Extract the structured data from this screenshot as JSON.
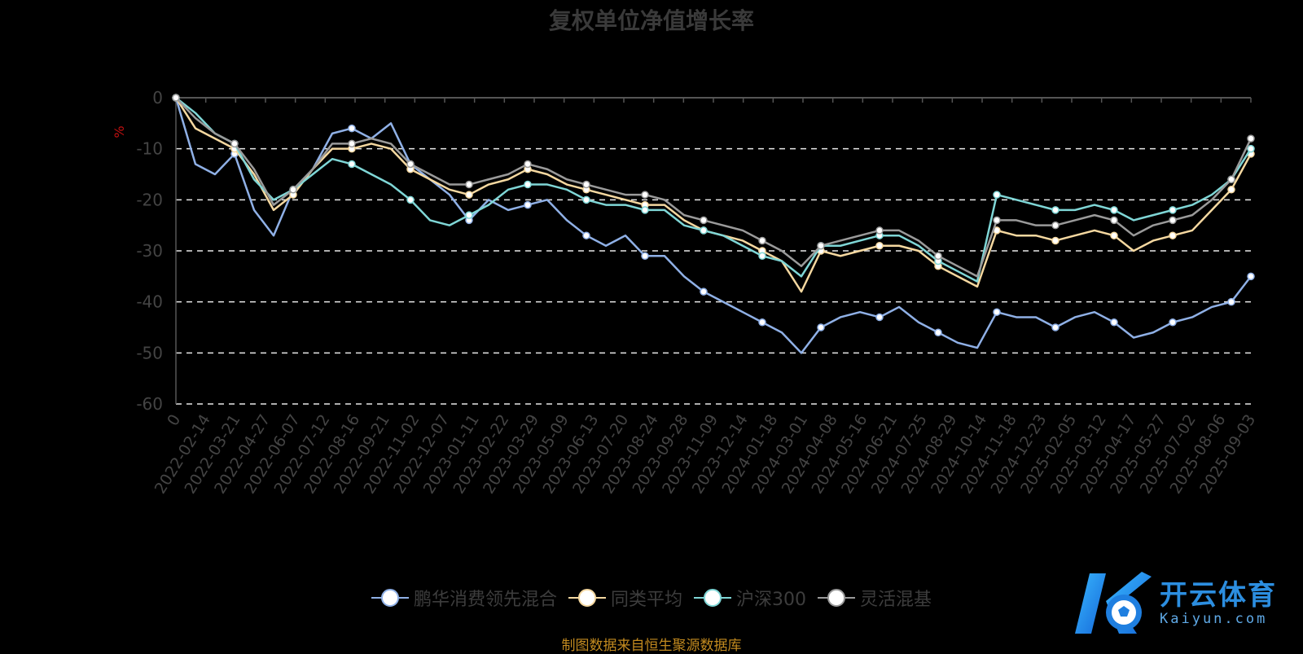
{
  "chart_data": {
    "type": "line",
    "title": "复权单位净值增长率",
    "ylabel": "%",
    "ylim": [
      -60,
      0
    ],
    "yticks": [
      0,
      -10,
      -20,
      -30,
      -40,
      -50,
      -60
    ],
    "grid": true,
    "legend_position": "bottom-center",
    "x_tick_labels": [
      "0",
      "2022-02-14",
      "2022-03-21",
      "2022-04-27",
      "2022-06-07",
      "2022-07-12",
      "2022-08-16",
      "2022-09-21",
      "2022-11-02",
      "2022-12-07",
      "2023-01-11",
      "2023-02-22",
      "2023-03-29",
      "2023-05-09",
      "2023-06-13",
      "2023-07-20",
      "2023-08-24",
      "2023-09-28",
      "2023-11-09",
      "2023-12-14",
      "2024-01-18",
      "2024-03-01",
      "2024-04-08",
      "2024-05-16",
      "2024-06-21",
      "2024-07-25",
      "2024-08-29",
      "2024-10-14",
      "2024-11-18",
      "2024-12-23",
      "2025-02-05",
      "2025-03-12",
      "2025-04-17",
      "2025-05-27",
      "2025-07-02",
      "2025-08-06",
      "2025-09-03"
    ],
    "series": [
      {
        "name": "鹏华消费领先混合",
        "color": "#8fb0e6",
        "values": [
          0,
          -13,
          -15,
          -11,
          -22,
          -27,
          -18,
          -14,
          -7,
          -6,
          -8,
          -5,
          -13,
          -16,
          -19,
          -24,
          -20,
          -22,
          -21,
          -20,
          -24,
          -27,
          -29,
          -27,
          -31,
          -31,
          -35,
          -38,
          -40,
          -42,
          -44,
          -46,
          -50,
          -45,
          -43,
          -42,
          -43,
          -41,
          -44,
          -46,
          -48,
          -49,
          -42,
          -43,
          -43,
          -45,
          -43,
          -42,
          -44,
          -47,
          -46,
          -44,
          -43,
          -41,
          -40,
          -35
        ]
      },
      {
        "name": "同类平均",
        "color": "#f5d8a0",
        "values": [
          0,
          -6,
          -8,
          -10,
          -15,
          -22,
          -19,
          -14,
          -10,
          -10,
          -9,
          -10,
          -14,
          -16,
          -18,
          -19,
          -17,
          -16,
          -14,
          -15,
          -17,
          -18,
          -19,
          -20,
          -21,
          -21,
          -24,
          -26,
          -27,
          -28,
          -30,
          -32,
          -38,
          -30,
          -31,
          -30,
          -29,
          -29,
          -30,
          -33,
          -35,
          -37,
          -26,
          -27,
          -27,
          -28,
          -27,
          -26,
          -27,
          -30,
          -28,
          -27,
          -26,
          -22,
          -18,
          -11
        ]
      },
      {
        "name": "沪深300",
        "color": "#7fd6d6",
        "values": [
          0,
          -3,
          -7,
          -9,
          -16,
          -20,
          -18,
          -15,
          -12,
          -13,
          -15,
          -17,
          -20,
          -24,
          -25,
          -23,
          -21,
          -18,
          -17,
          -17,
          -18,
          -20,
          -21,
          -21,
          -22,
          -22,
          -25,
          -26,
          -27,
          -29,
          -31,
          -32,
          -35,
          -29,
          -29,
          -28,
          -27,
          -27,
          -29,
          -32,
          -34,
          -36,
          -19,
          -20,
          -21,
          -22,
          -22,
          -21,
          -22,
          -24,
          -23,
          -22,
          -21,
          -19,
          -16,
          -10
        ]
      },
      {
        "name": "灵活混基",
        "color": "#9a9a9a",
        "values": [
          0,
          -4,
          -7,
          -9,
          -14,
          -21,
          -18,
          -14,
          -9,
          -9,
          -8,
          -9,
          -13,
          -15,
          -17,
          -17,
          -16,
          -15,
          -13,
          -14,
          -16,
          -17,
          -18,
          -19,
          -19,
          -20,
          -23,
          -24,
          -25,
          -26,
          -28,
          -30,
          -33,
          -29,
          -28,
          -27,
          -26,
          -26,
          -28,
          -31,
          -33,
          -35,
          -24,
          -24,
          -25,
          -25,
          -24,
          -23,
          -24,
          -27,
          -25,
          -24,
          -23,
          -20,
          -16,
          -8
        ]
      }
    ]
  },
  "legend": {
    "items": [
      {
        "label": "鹏华消费领先混合",
        "color": "#8fb0e6"
      },
      {
        "label": "同类平均",
        "color": "#f5d8a0"
      },
      {
        "label": "沪深300",
        "color": "#7fd6d6"
      },
      {
        "label": "灵活混基",
        "color": "#9a9a9a"
      }
    ]
  },
  "source_note": "制图数据来自恒生聚源数据库",
  "watermark": {
    "cn": "开云体育",
    "en": "Kaiyun.com",
    "logo_icon": "kaiyun-logo-icon"
  }
}
